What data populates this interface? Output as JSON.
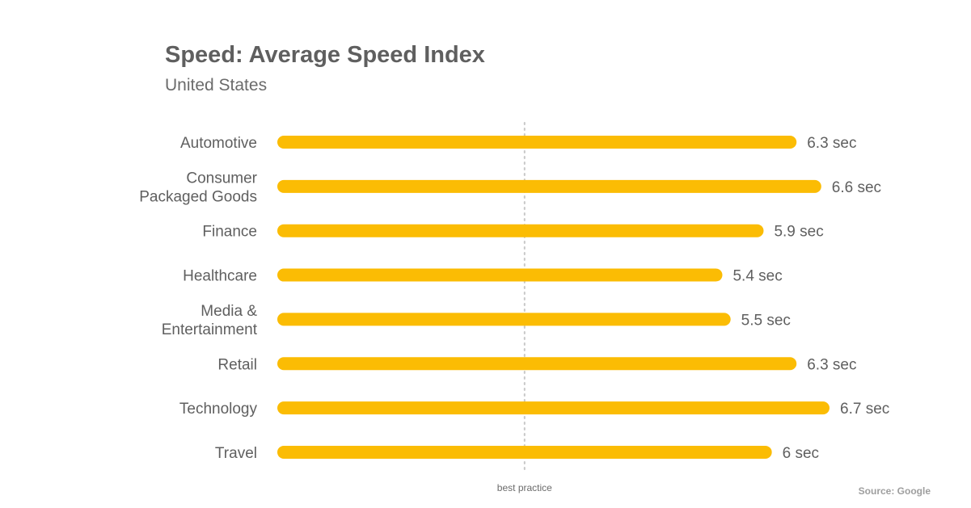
{
  "chart_data": {
    "type": "bar",
    "orientation": "horizontal",
    "title": "Speed: Average Speed Index",
    "subtitle": "United States",
    "categories": [
      [
        "Automotive"
      ],
      [
        "Consumer",
        "Packaged Goods"
      ],
      [
        "Finance"
      ],
      [
        "Healthcare"
      ],
      [
        "Media &",
        "Entertainment"
      ],
      [
        "Retail"
      ],
      [
        "Technology"
      ],
      [
        "Travel"
      ]
    ],
    "values": [
      6.3,
      6.6,
      5.9,
      5.4,
      5.5,
      6.3,
      6.7,
      6
    ],
    "value_labels": [
      "6.3 sec",
      "6.6 sec",
      "5.9 sec",
      "5.4 sec",
      "5.5 sec",
      "6.3 sec",
      "6.7 sec",
      "6 sec"
    ],
    "unit": "sec",
    "xlim": [
      0,
      6.7
    ],
    "reference_line": {
      "value": 3,
      "label": "best practice",
      "style": "dotted"
    },
    "grid": false,
    "legend": "none",
    "bar_color": "#FBBC04",
    "source": "Source: Google"
  },
  "colors": {
    "bar": "#FBBC04",
    "text": "#5f5f5f",
    "reference_line": "#c8c8c8",
    "source": "#9e9e9e"
  }
}
